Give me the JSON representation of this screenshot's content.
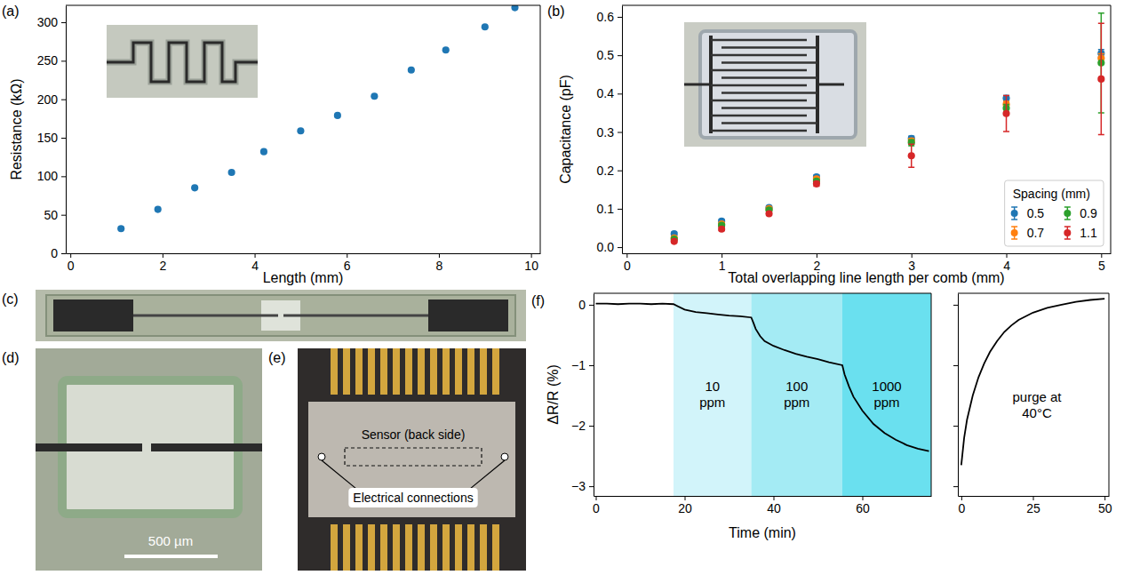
{
  "chart_data": [
    {
      "type": "scatter",
      "panel": "(a)",
      "x_label": "Length (mm)",
      "y_label": "Resistance (kΩ)",
      "x": [
        1.1,
        1.9,
        2.7,
        3.5,
        4.2,
        5.0,
        5.8,
        6.6,
        7.4,
        8.15,
        9.0,
        9.65
      ],
      "values": [
        32,
        57,
        85,
        105,
        132,
        159,
        179,
        204,
        238,
        264,
        294,
        319
      ],
      "color": "#1f77b4",
      "marker": "circle",
      "xlim": [
        -0.1,
        10.2
      ],
      "ylim": [
        0,
        322
      ],
      "xticks": [
        0,
        2,
        4,
        6,
        8,
        10
      ],
      "yticks": [
        0,
        50,
        100,
        150,
        200,
        250,
        300
      ]
    },
    {
      "type": "scatter",
      "panel": "(b)",
      "x_label": "Total overlapping line length per comb (mm)",
      "y_label": "Capacitance (pF)",
      "x": [
        0.5,
        1,
        1.5,
        2,
        3,
        4,
        5
      ],
      "series": [
        {
          "name": "0.5",
          "color": "#1f77b4",
          "values": [
            0.035,
            0.068,
            0.103,
            0.183,
            0.283,
            0.388,
            0.505
          ],
          "errors": [
            0.004,
            0.004,
            0.004,
            0.005,
            0.006,
            0.007,
            0.01
          ]
        },
        {
          "name": "0.7",
          "color": "#ff7f0e",
          "values": [
            0.024,
            0.06,
            0.1,
            0.178,
            0.277,
            0.372,
            0.492
          ],
          "errors": [
            0.003,
            0.004,
            0.004,
            0.005,
            0.006,
            0.008,
            0.012
          ]
        },
        {
          "name": "0.9",
          "color": "#2ca02c",
          "values": [
            0.021,
            0.057,
            0.097,
            0.172,
            0.272,
            0.362,
            0.48
          ],
          "errors": [
            0.003,
            0.004,
            0.004,
            0.005,
            0.008,
            0.01,
            0.13
          ]
        },
        {
          "name": "1.1",
          "color": "#d62728",
          "values": [
            0.015,
            0.047,
            0.087,
            0.165,
            0.238,
            0.348,
            0.438
          ],
          "errors": [
            0.003,
            0.004,
            0.004,
            0.006,
            0.03,
            0.047,
            0.145
          ]
        }
      ],
      "marker": "circle",
      "legend": "lower right",
      "legend_title": "Spacing (mm)",
      "xlim": [
        -0.05,
        5.1
      ],
      "ylim": [
        -0.016,
        0.63
      ],
      "xticks": [
        0,
        1,
        2,
        3,
        4,
        5
      ],
      "yticks": [
        {
          "value": 0,
          "label": "0.0"
        },
        0.1,
        0.2,
        0.3,
        0.4,
        0.5,
        0.6
      ]
    },
    {
      "type": "line",
      "panel": "(f)",
      "x_label": "Time (min)",
      "y_label": "ΔR/R (%)",
      "x": [
        0,
        2.5,
        5,
        7.5,
        10,
        12.5,
        15,
        17.5,
        20,
        22.5,
        25,
        27.5,
        30,
        32.5,
        35,
        35.5,
        36,
        37,
        38,
        40,
        42.5,
        45,
        47.5,
        50,
        52.5,
        55.5,
        56,
        57,
        58,
        60,
        62.5,
        65,
        67.5,
        70,
        72.5,
        75
      ],
      "values": [
        0.02,
        0.02,
        0.01,
        0.02,
        0.02,
        0.01,
        0.02,
        0.01,
        -0.08,
        -0.12,
        -0.14,
        -0.16,
        -0.18,
        -0.19,
        -0.21,
        -0.3,
        -0.4,
        -0.52,
        -0.6,
        -0.68,
        -0.75,
        -0.81,
        -0.86,
        -0.9,
        -0.95,
        -1.0,
        -1.15,
        -1.35,
        -1.52,
        -1.75,
        -1.97,
        -2.12,
        -2.23,
        -2.32,
        -2.38,
        -2.42
      ],
      "color": "#000000",
      "line_style": "solid",
      "bands": [
        {
          "label": "10 ppm",
          "start": 17.5,
          "end": 35,
          "color": "#d2f4fa"
        },
        {
          "label": "100 ppm",
          "start": 35,
          "end": 55.5,
          "color": "#a4ebf4"
        },
        {
          "label": "1000 ppm",
          "start": 55.5,
          "end": 75.5,
          "color": "#6ae0ef"
        }
      ],
      "xlim": [
        -0.5,
        75.5
      ],
      "ylim": [
        -3.16,
        0.19
      ],
      "xticks": [
        0,
        20,
        40,
        60
      ],
      "yticks": [
        0,
        {
          "value": -1,
          "label": "−1"
        },
        {
          "value": -2,
          "label": "−2"
        },
        {
          "value": -3,
          "label": "−3"
        }
      ]
    },
    {
      "type": "line",
      "x": [
        0,
        1,
        2,
        4,
        6,
        8,
        10,
        12.5,
        15,
        17.5,
        20,
        25,
        30,
        35,
        40,
        45,
        50
      ],
      "values": [
        -2.65,
        -2.2,
        -1.9,
        -1.5,
        -1.2,
        -0.97,
        -0.78,
        -0.6,
        -0.45,
        -0.34,
        -0.25,
        -0.13,
        -0.05,
        0.0,
        0.05,
        0.08,
        0.1
      ],
      "color": "#000000",
      "line_style": "solid",
      "annotations": [
        "purge at 40°C"
      ],
      "tick_labels": "x",
      "xlim": [
        -1.2,
        51.5
      ],
      "ylim": [
        -3.16,
        0.19
      ],
      "xticks": [
        0,
        25,
        50
      ],
      "yticks": [
        0,
        -1,
        -2,
        -3
      ]
    }
  ],
  "images": [
    {
      "panel": "(c)"
    },
    {
      "panel": "(d)",
      "scale_bar": "500 µm"
    },
    {
      "panel": "(e)",
      "labels": [
        "Sensor (back side)",
        "Electrical connections"
      ]
    }
  ]
}
